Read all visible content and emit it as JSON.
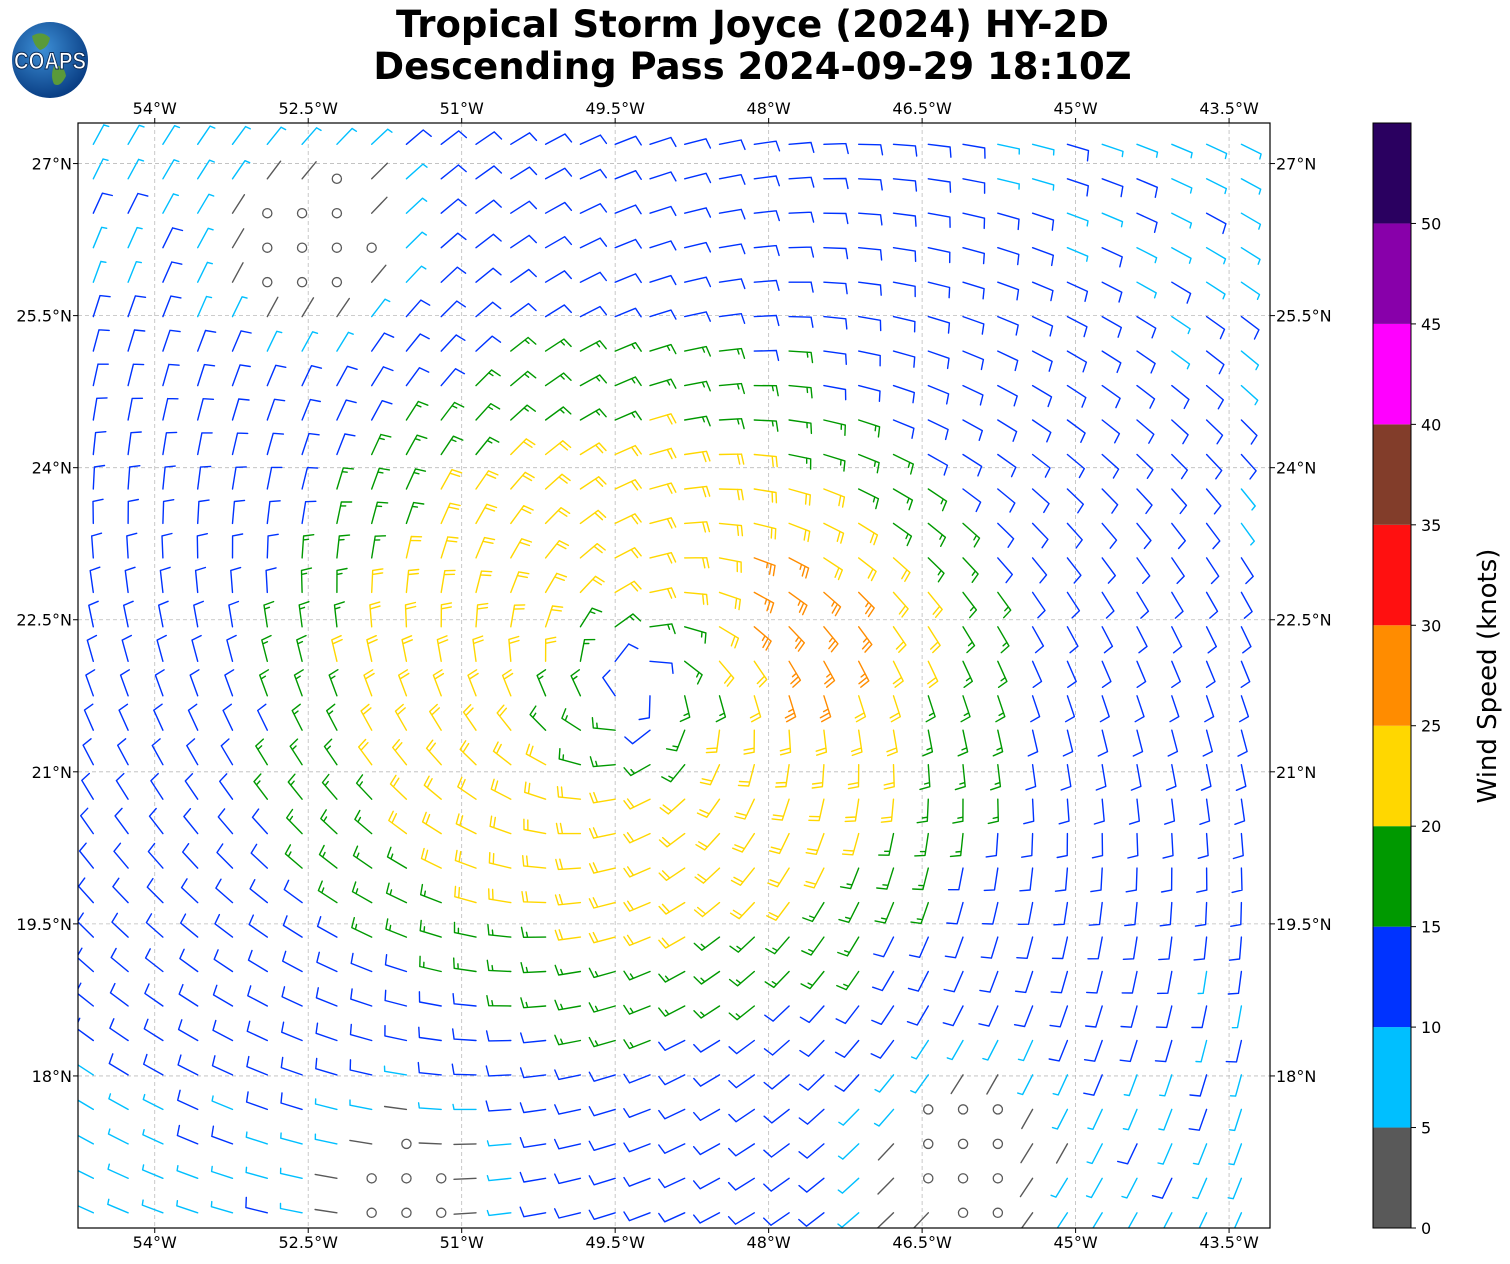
{
  "header": {
    "title_line1": "Tropical Storm Joyce (2024) HY-2D",
    "title_line2": "Descending Pass 2024-09-29 18:10Z",
    "logo_text": "COAPS"
  },
  "chart_data": {
    "type": "wind-barb map",
    "title": "Tropical Storm Joyce (2024) HY-2D Descending Pass 2024-09-29 18:10Z",
    "xlim": [
      -54.75,
      -43.1
    ],
    "ylim": [
      16.5,
      27.4
    ],
    "grid": true,
    "x_ticks": [
      -54,
      -52.5,
      -51,
      -49.5,
      -48,
      -46.5,
      -45,
      -43.5
    ],
    "x_tick_labels": [
      "54°W",
      "52.5°W",
      "51°W",
      "49.5°W",
      "48°W",
      "46.5°W",
      "45°W",
      "43.5°W"
    ],
    "y_ticks": [
      27,
      25.5,
      24,
      22.5,
      21,
      19.5,
      18
    ],
    "y_tick_labels": [
      "27°N",
      "25.5°N",
      "24°N",
      "22.5°N",
      "21°N",
      "19.5°N",
      "18°N"
    ],
    "storm_center": {
      "lon": -49.3,
      "lat": 21.8
    },
    "colorbar": {
      "label": "Wind Speed (knots)",
      "ticks": [
        0,
        5,
        10,
        15,
        20,
        25,
        30,
        35,
        40,
        45,
        50
      ],
      "tick_labels": [
        "0",
        "5",
        "10",
        "15",
        "20",
        "25",
        "30",
        "35",
        "40",
        "45",
        "50"
      ],
      "max": 55,
      "bins": [
        {
          "min": 0,
          "max": 5,
          "color": "#595959"
        },
        {
          "min": 5,
          "max": 10,
          "color": "#00bfff"
        },
        {
          "min": 10,
          "max": 15,
          "color": "#0033ff"
        },
        {
          "min": 15,
          "max": 20,
          "color": "#009900"
        },
        {
          "min": 20,
          "max": 25,
          "color": "#ffd700"
        },
        {
          "min": 25,
          "max": 30,
          "color": "#ff8c00"
        },
        {
          "min": 30,
          "max": 35,
          "color": "#ff1010"
        },
        {
          "min": 35,
          "max": 40,
          "color": "#823d2a"
        },
        {
          "min": 40,
          "max": 45,
          "color": "#ff00ff"
        },
        {
          "min": 45,
          "max": 50,
          "color": "#8800aa"
        },
        {
          "min": 50,
          "max": 55,
          "color": "#2a0060"
        }
      ]
    }
  }
}
